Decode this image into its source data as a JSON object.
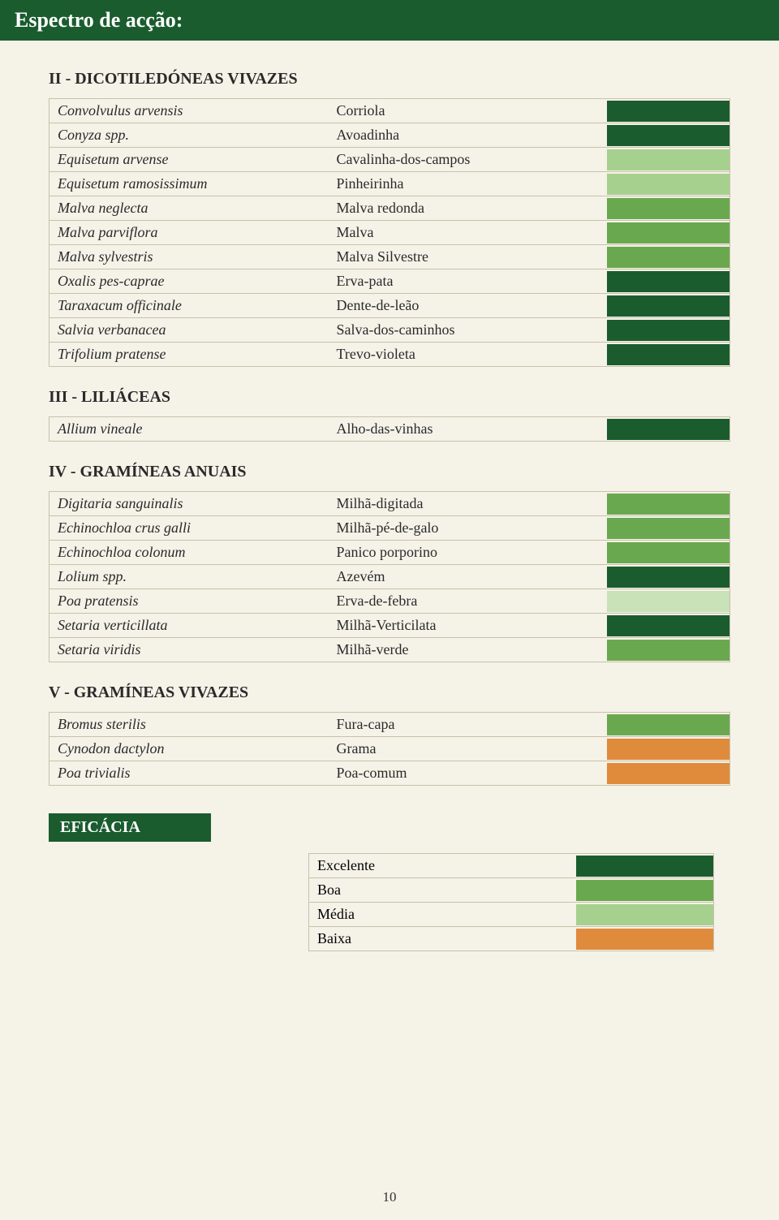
{
  "colors": {
    "dark_green": "#1a5c2e",
    "mid_green": "#6aa84f",
    "light_green": "#a6d08e",
    "pale_green": "#c9e2b8",
    "orange": "#e08a3c"
  },
  "page_title": "Espectro de acção:",
  "sections": [
    {
      "heading": "II - DICOTILEDÓNEAS VIVAZES",
      "rows": [
        {
          "latin": "Convolvulus arvensis",
          "common": "Corriola",
          "color": "#1a5c2e"
        },
        {
          "latin": "Conyza spp.",
          "common": "Avoadinha",
          "color": "#1a5c2e"
        },
        {
          "latin": "Equisetum arvense",
          "common": "Cavalinha-dos-campos",
          "color": "#a6d08e"
        },
        {
          "latin": "Equisetum ramosissimum",
          "common": "Pinheirinha",
          "color": "#a6d08e"
        },
        {
          "latin": "Malva neglecta",
          "common": "Malva redonda",
          "color": "#6aa84f"
        },
        {
          "latin": "Malva parviflora",
          "common": "Malva",
          "color": "#6aa84f"
        },
        {
          "latin": "Malva sylvestris",
          "common": "Malva Silvestre",
          "color": "#6aa84f"
        },
        {
          "latin": "Oxalis pes-caprae",
          "common": "Erva-pata",
          "color": "#1a5c2e"
        },
        {
          "latin": "Taraxacum officinale",
          "common": "Dente-de-leão",
          "color": "#1a5c2e"
        },
        {
          "latin": "Salvia verbanacea",
          "common": "Salva-dos-caminhos",
          "color": "#1a5c2e"
        },
        {
          "latin": "Trifolium pratense",
          "common": "Trevo-violeta",
          "color": "#1a5c2e"
        }
      ]
    },
    {
      "heading": "III - LILIÁCEAS",
      "rows": [
        {
          "latin": "Allium vineale",
          "common": "Alho-das-vinhas",
          "color": "#1a5c2e"
        }
      ]
    },
    {
      "heading": "IV - GRAMÍNEAS ANUAIS",
      "rows": [
        {
          "latin": "Digitaria sanguinalis",
          "common": "Milhã-digitada",
          "color": "#6aa84f"
        },
        {
          "latin": "Echinochloa crus galli",
          "common": "Milhã-pé-de-galo",
          "color": "#6aa84f"
        },
        {
          "latin": "Echinochloa colonum",
          "common": "Panico porporino",
          "color": "#6aa84f"
        },
        {
          "latin": "Lolium spp.",
          "common": "Azevém",
          "color": "#1a5c2e"
        },
        {
          "latin": "Poa pratensis",
          "common": "Erva-de-febra",
          "color": "#c9e2b8"
        },
        {
          "latin": "Setaria verticillata",
          "common": "Milhã-Verticilata",
          "color": "#1a5c2e"
        },
        {
          "latin": "Setaria viridis",
          "common": "Milhã-verde",
          "color": "#6aa84f"
        }
      ]
    },
    {
      "heading": "V - GRAMÍNEAS VIVAZES",
      "rows": [
        {
          "latin": "Bromus sterilis",
          "common": "Fura-capa",
          "color": "#6aa84f"
        },
        {
          "latin": "Cynodon dactylon",
          "common": "Grama",
          "color": "#e08a3c"
        },
        {
          "latin": "Poa trivialis",
          "common": "Poa-comum",
          "color": "#e08a3c"
        }
      ]
    }
  ],
  "eficacia": {
    "title": "EFICÁCIA",
    "legend": [
      {
        "label": "Excelente",
        "color": "#1a5c2e"
      },
      {
        "label": "Boa",
        "color": "#6aa84f"
      },
      {
        "label": "Média",
        "color": "#a6d08e"
      },
      {
        "label": "Baixa",
        "color": "#e08a3c"
      }
    ]
  },
  "page_number": "10"
}
